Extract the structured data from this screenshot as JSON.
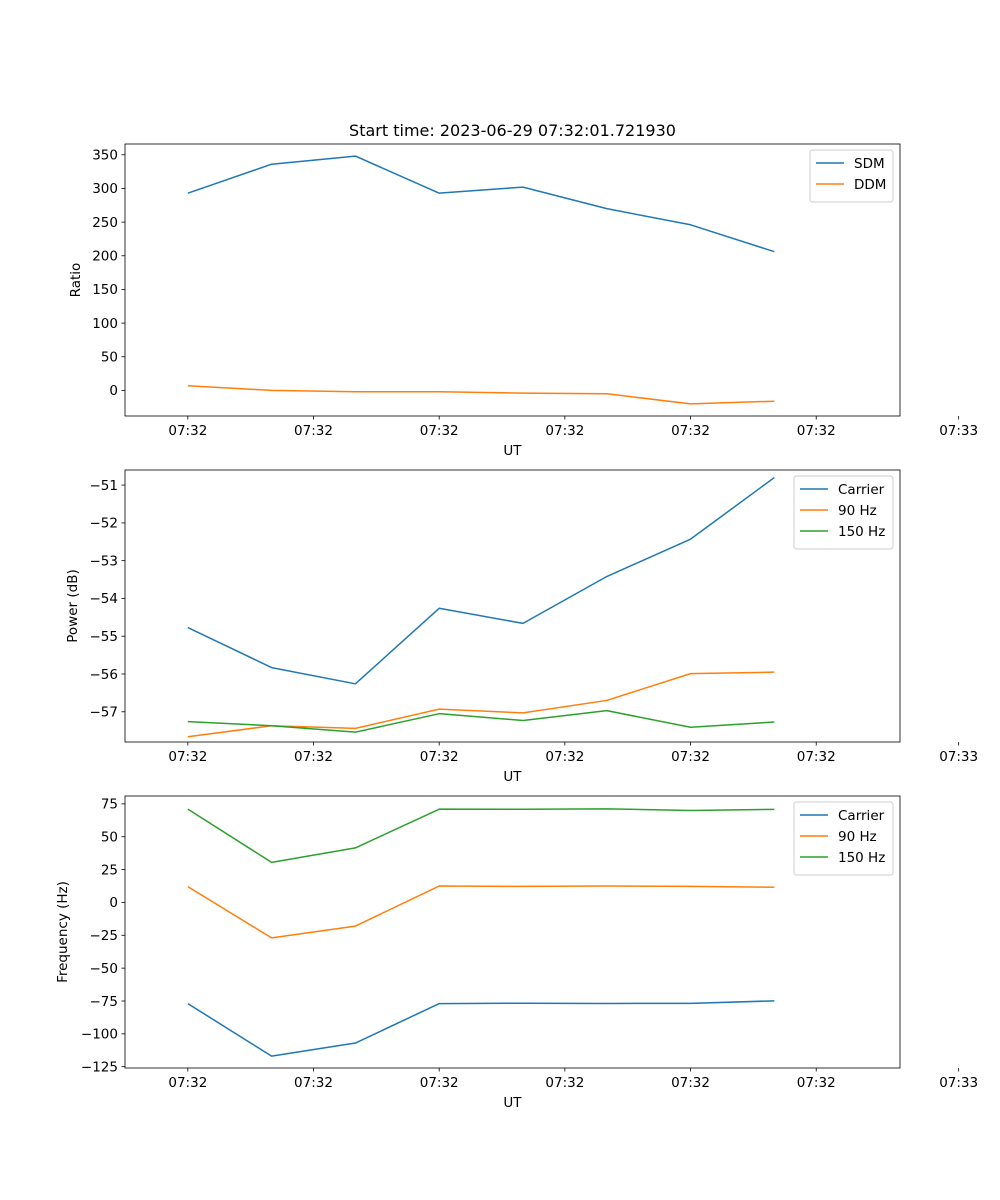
{
  "title": "Start time: 2023-06-29 07:32:01.721930",
  "chart_data": [
    {
      "type": "line",
      "title": "Start time: 2023-06-29 07:32:01.721930",
      "xlabel": "UT",
      "ylabel": "Ratio",
      "x_tick_labels": [
        "07:32",
        "07:32",
        "07:32",
        "07:32",
        "07:32",
        "07:32",
        "07:33"
      ],
      "x": [
        0,
        1,
        2,
        3,
        4,
        5,
        6,
        7
      ],
      "xlim": [
        -0.75,
        8.5
      ],
      "ylim": [
        -38,
        366
      ],
      "y_ticks": [
        0,
        50,
        100,
        150,
        200,
        250,
        300,
        350
      ],
      "y_tick_labels": [
        "0",
        "50",
        "100",
        "150",
        "200",
        "250",
        "300",
        "350"
      ],
      "legend_position": "top-right",
      "grid": false,
      "series": [
        {
          "name": "SDM",
          "color": "#1f77b4",
          "values": [
            293,
            336,
            348,
            293,
            302,
            270,
            246,
            206
          ]
        },
        {
          "name": "DDM",
          "color": "#ff7f0e",
          "values": [
            7,
            0,
            -2,
            -2,
            -4,
            -5,
            -20,
            -16
          ]
        }
      ]
    },
    {
      "type": "line",
      "xlabel": "UT",
      "ylabel": "Power (dB)",
      "x_tick_labels": [
        "07:32",
        "07:32",
        "07:32",
        "07:32",
        "07:32",
        "07:32",
        "07:33"
      ],
      "x": [
        0,
        1,
        2,
        3,
        4,
        5,
        6,
        7
      ],
      "xlim": [
        -0.75,
        8.5
      ],
      "ylim": [
        -57.8,
        -50.6
      ],
      "y_ticks": [
        -57,
        -56,
        -55,
        -54,
        -53,
        -52,
        -51
      ],
      "y_tick_labels": [
        "−57",
        "−56",
        "−55",
        "−54",
        "−53",
        "−52",
        "−51"
      ],
      "legend_position": "top-right",
      "grid": false,
      "series": [
        {
          "name": "Carrier",
          "color": "#1f77b4",
          "values": [
            -54.77,
            -55.83,
            -56.26,
            -54.26,
            -54.66,
            -53.42,
            -52.43,
            -50.8
          ]
        },
        {
          "name": "90 Hz",
          "color": "#ff7f0e",
          "values": [
            -57.66,
            -57.37,
            -57.44,
            -56.93,
            -57.03,
            -56.7,
            -55.99,
            -55.95
          ]
        },
        {
          "name": "150 Hz",
          "color": "#2ca02c",
          "values": [
            -57.26,
            -57.37,
            -57.54,
            -57.05,
            -57.23,
            -56.97,
            -57.41,
            -57.27
          ]
        }
      ]
    },
    {
      "type": "line",
      "xlabel": "UT",
      "ylabel": "Frequency (Hz)",
      "x_tick_labels": [
        "07:32",
        "07:32",
        "07:32",
        "07:32",
        "07:32",
        "07:32",
        "07:33"
      ],
      "x": [
        0,
        1,
        2,
        3,
        4,
        5,
        6,
        7
      ],
      "xlim": [
        -0.75,
        8.5
      ],
      "ylim": [
        -126,
        81
      ],
      "y_ticks": [
        -125,
        -100,
        -75,
        -50,
        -25,
        0,
        25,
        50,
        75
      ],
      "y_tick_labels": [
        "−125",
        "−100",
        "−75",
        "−50",
        "−25",
        "0",
        "25",
        "50",
        "75"
      ],
      "legend_position": "top-right",
      "grid": false,
      "series": [
        {
          "name": "Carrier",
          "color": "#1f77b4",
          "values": [
            -77,
            -117,
            -107,
            -77,
            -76.7,
            -76.9,
            -76.8,
            -74.9
          ]
        },
        {
          "name": "90 Hz",
          "color": "#ff7f0e",
          "values": [
            12,
            -27,
            -18,
            12.5,
            12.2,
            12.5,
            12.2,
            11.6
          ]
        },
        {
          "name": "150 Hz",
          "color": "#2ca02c",
          "values": [
            71,
            30.5,
            41.5,
            71,
            70.9,
            71.2,
            70,
            70.8
          ]
        }
      ]
    }
  ]
}
